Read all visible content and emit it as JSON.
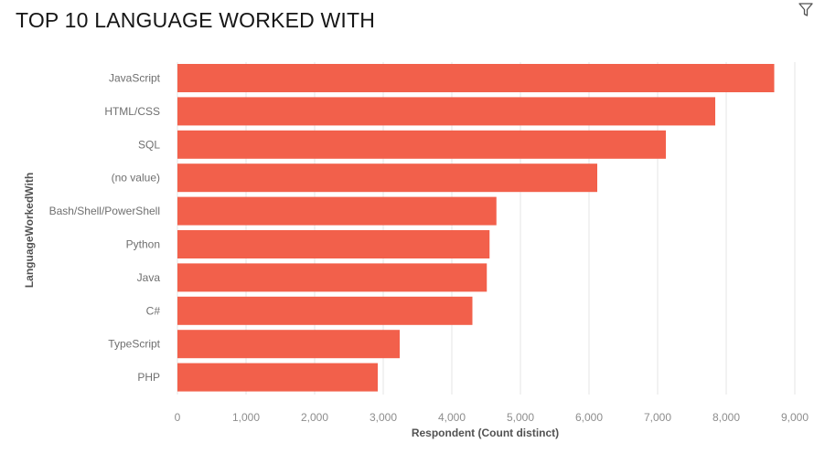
{
  "title": "TOP 10 LANGUAGE WORKED WITH",
  "filter_icon": "filter-icon",
  "colors": {
    "bar": "#f2604b",
    "grid": "#e6e6e6"
  },
  "chart_data": {
    "type": "bar",
    "orientation": "horizontal",
    "title": "TOP 10 LANGUAGE WORKED WITH",
    "xlabel": "Respondent (Count distinct)",
    "ylabel": "LanguageWorkedWith",
    "xlim": [
      0,
      9000
    ],
    "xticks": [
      0,
      1000,
      2000,
      3000,
      4000,
      5000,
      6000,
      7000,
      8000,
      9000
    ],
    "xtick_labels": [
      "0",
      "1,000",
      "2,000",
      "3,000",
      "4,000",
      "5,000",
      "6,000",
      "7,000",
      "8,000",
      "9,000"
    ],
    "grid": "vertical",
    "categories": [
      "JavaScript",
      "HTML/CSS",
      "SQL",
      "(no value)",
      "Bash/Shell/PowerShell",
      "Python",
      "Java",
      "C#",
      "TypeScript",
      "PHP"
    ],
    "values": [
      8700,
      7840,
      7120,
      6120,
      4650,
      4550,
      4510,
      4300,
      3240,
      2920
    ]
  }
}
